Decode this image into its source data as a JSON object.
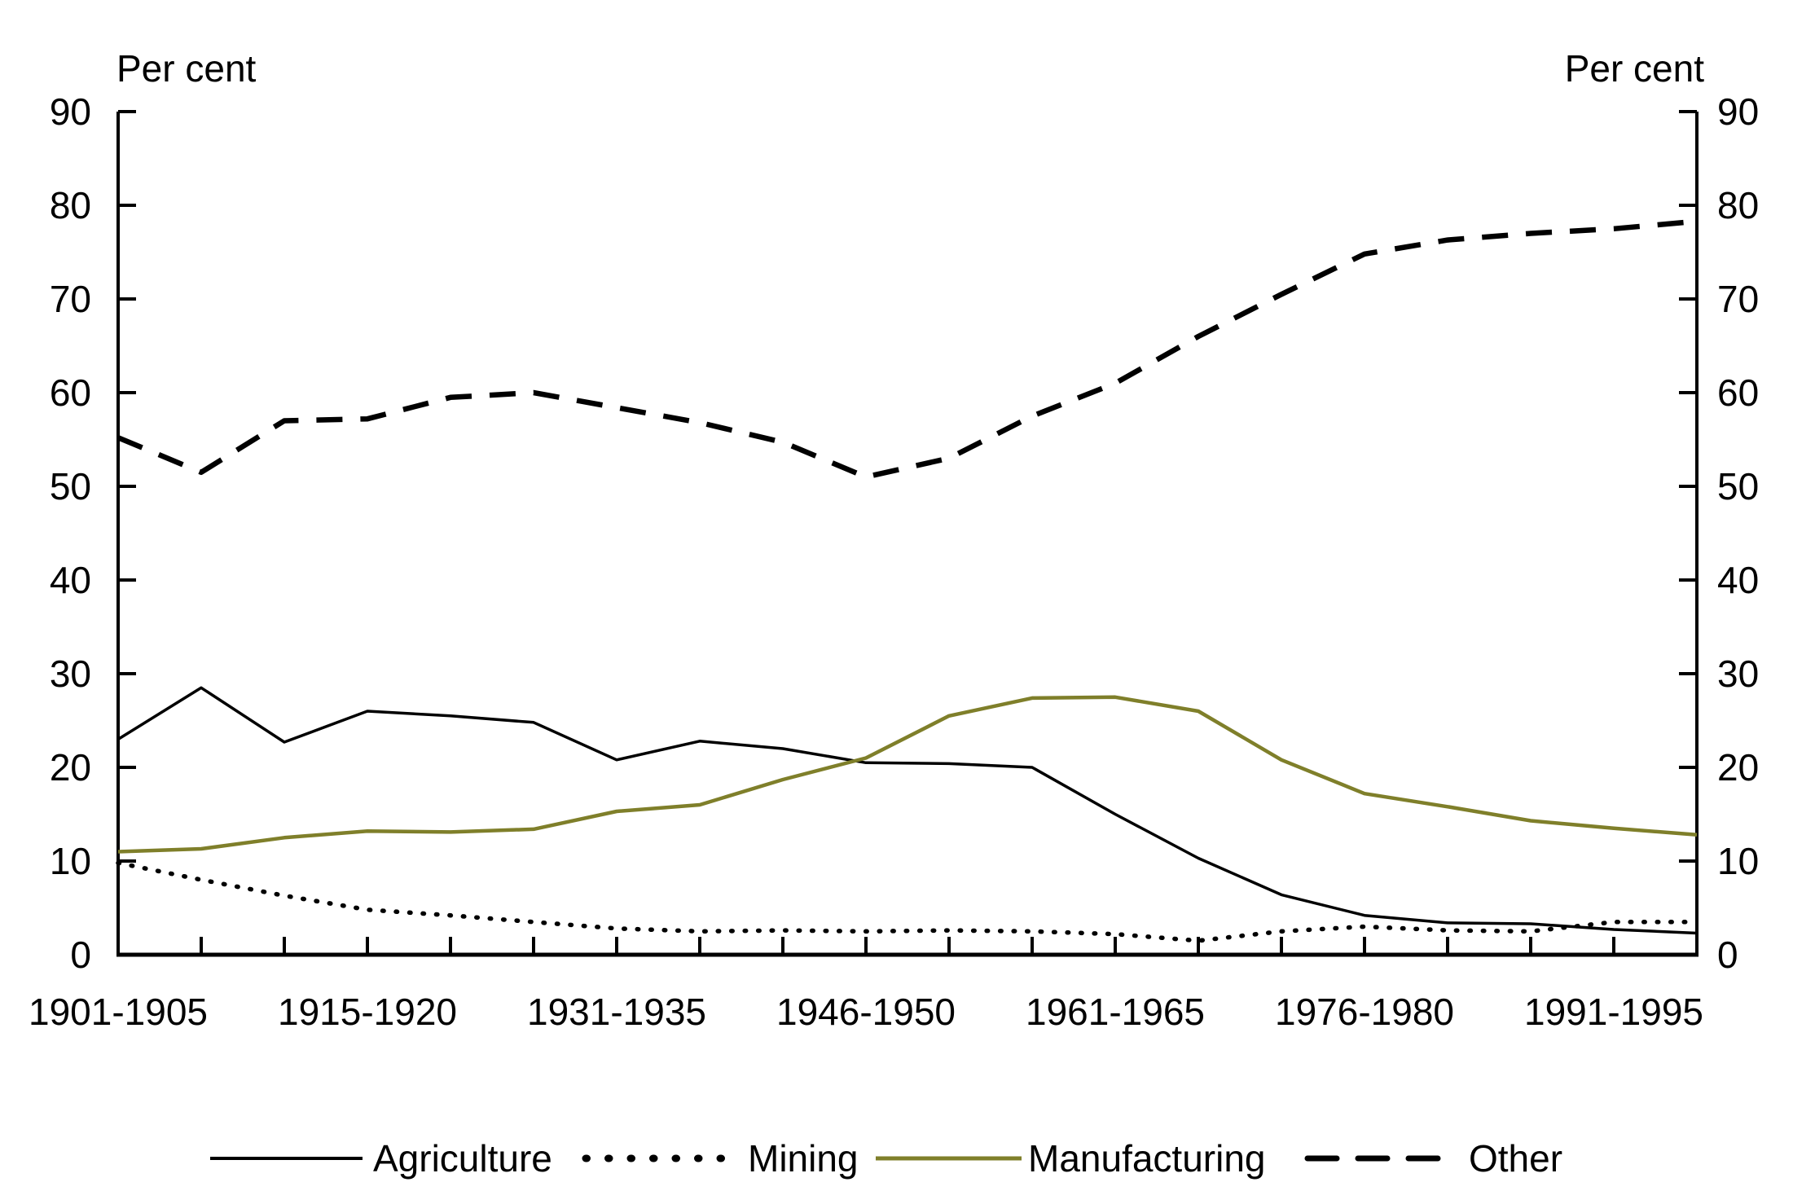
{
  "chart_data": {
    "type": "line",
    "title": "",
    "ylabel_left": "Per cent",
    "ylabel_right": "Per cent",
    "ylim": [
      0,
      90
    ],
    "yticks": [
      0,
      10,
      20,
      30,
      40,
      50,
      60,
      70,
      80,
      90
    ],
    "grid": "off",
    "legend_position": "bottom",
    "n_points": 20,
    "x_axis_note": "Five-year periods; every third tick labelled",
    "x_tick_labels": [
      {
        "label": "1901-1905",
        "index": 0
      },
      {
        "label": "1915-1920",
        "index": 3
      },
      {
        "label": "1931-1935",
        "index": 6
      },
      {
        "label": "1946-1950",
        "index": 9
      },
      {
        "label": "1961-1965",
        "index": 12
      },
      {
        "label": "1976-1980",
        "index": 15
      },
      {
        "label": "1991-1995",
        "index": 18
      }
    ],
    "axis_color": "#000000",
    "background_color": "#ffffff",
    "series": [
      {
        "name": "Agriculture",
        "color": "#000000",
        "style": "solid",
        "width": 3.5,
        "values": [
          23.0,
          28.5,
          22.7,
          26.0,
          25.5,
          24.8,
          20.8,
          22.8,
          22.0,
          20.5,
          20.4,
          20.0,
          15.0,
          10.3,
          6.4,
          4.2,
          3.4,
          3.3,
          2.7,
          2.3
        ]
      },
      {
        "name": "Mining",
        "color": "#000000",
        "style": "dotted",
        "width": 5.5,
        "values": [
          9.8,
          8.0,
          6.3,
          4.8,
          4.2,
          3.5,
          2.8,
          2.5,
          2.6,
          2.5,
          2.6,
          2.5,
          2.2,
          1.5,
          2.5,
          3.0,
          2.6,
          2.5,
          3.5,
          3.5
        ]
      },
      {
        "name": "Manufacturing",
        "color": "#7f7f2a",
        "style": "solid",
        "width": 4.5,
        "values": [
          11.0,
          11.3,
          12.5,
          13.2,
          13.1,
          13.4,
          15.3,
          16.0,
          18.7,
          21.0,
          25.5,
          27.4,
          27.5,
          26.0,
          20.8,
          17.2,
          15.8,
          14.3,
          13.5,
          12.8
        ]
      },
      {
        "name": "Other",
        "color": "#000000",
        "style": "dashed",
        "width": 6.5,
        "values": [
          55.2,
          51.5,
          57.0,
          57.2,
          59.5,
          60.0,
          58.4,
          56.8,
          54.7,
          51.0,
          53.0,
          57.5,
          61.0,
          66.0,
          70.5,
          74.8,
          76.3,
          77.0,
          77.5,
          78.3
        ]
      }
    ]
  }
}
